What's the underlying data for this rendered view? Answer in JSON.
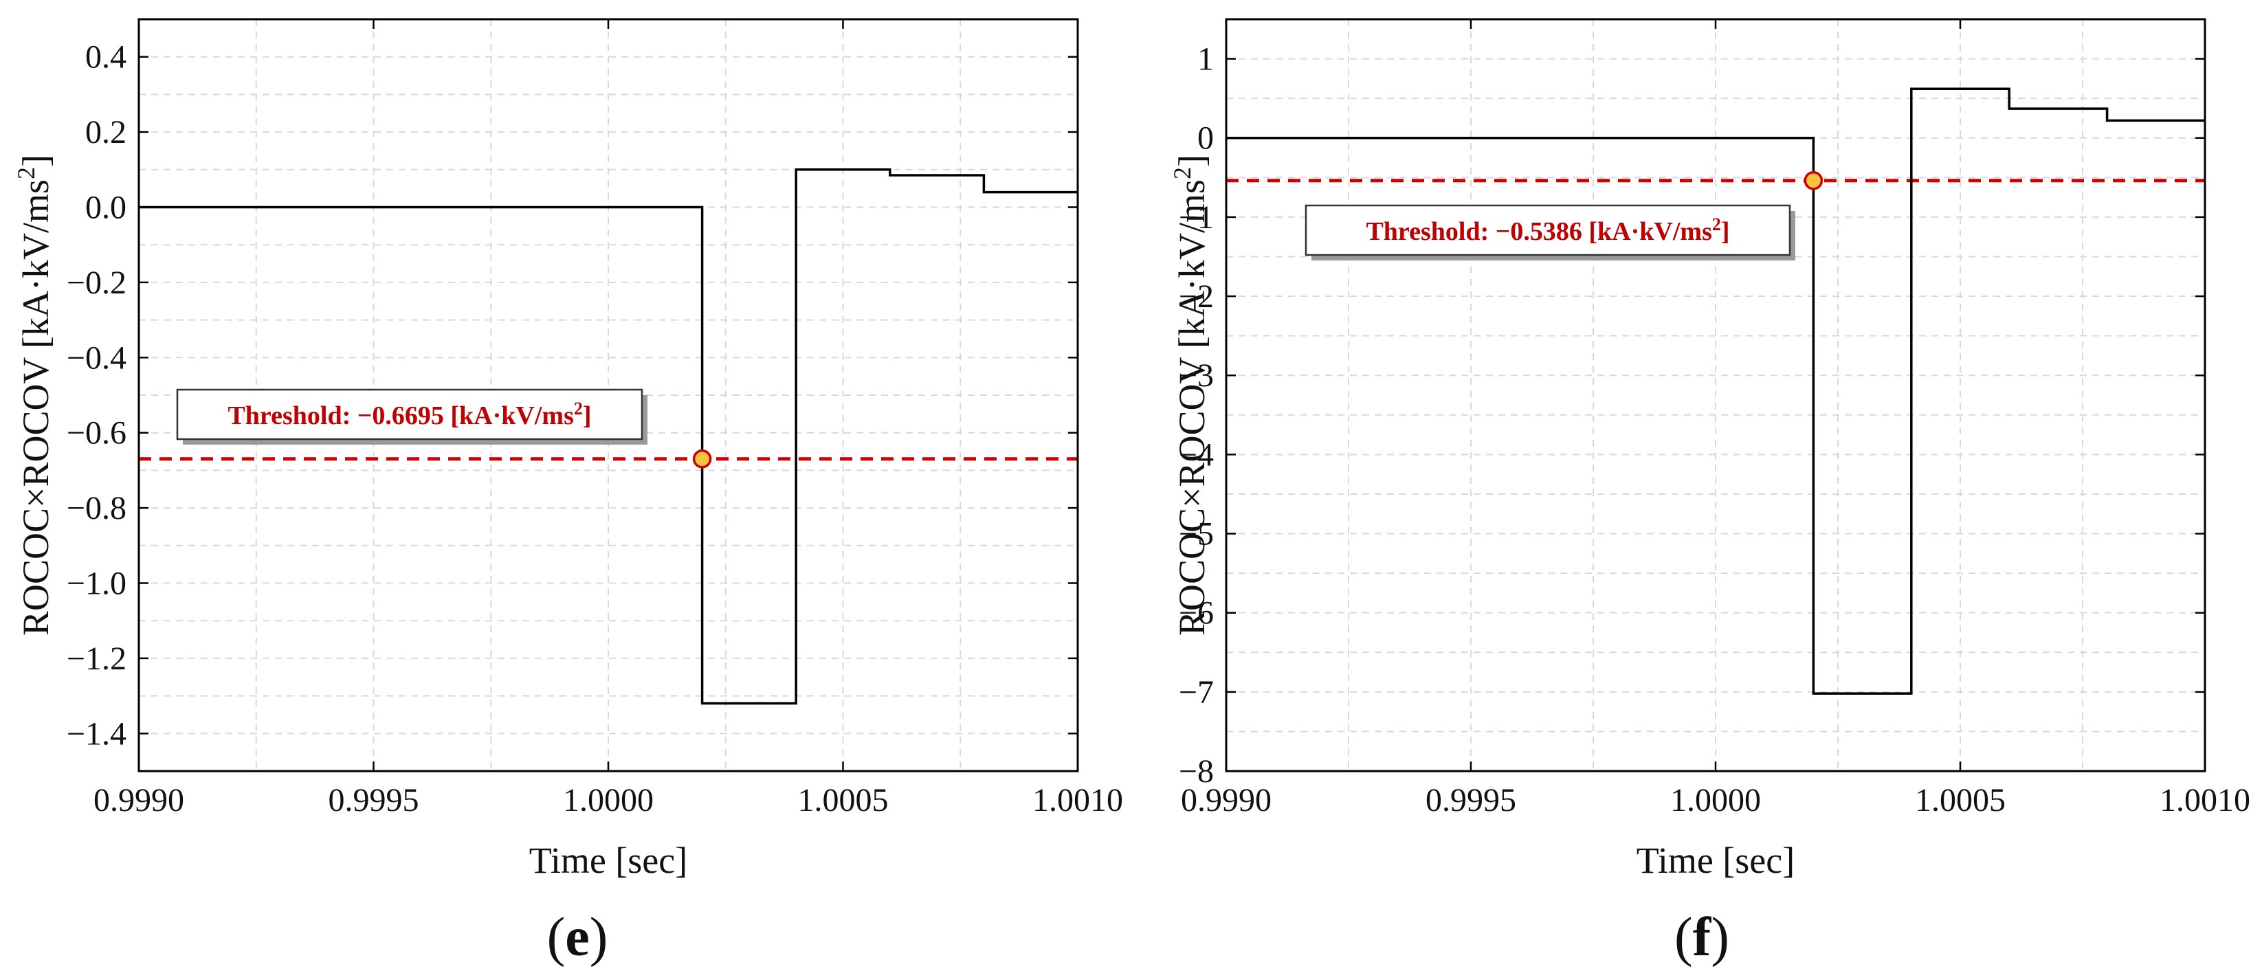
{
  "chart_data": [
    {
      "type": "line",
      "panel_label": "e",
      "xlabel": "Time [sec]",
      "ylabel": "ROCOC×ROCOV [kA·kV/ms",
      "ylabel_sup": "2",
      "ylabel_end": "]",
      "xlim": [
        0.999,
        1.001
      ],
      "ylim": [
        -1.5,
        0.5
      ],
      "xticks": [
        0.999,
        0.9995,
        1.0,
        1.0005,
        1.001
      ],
      "xtick_labels": [
        "0.9990",
        "0.9995",
        "1.0000",
        "1.0005",
        "1.0010"
      ],
      "yticks": [
        -1.4,
        -1.2,
        -1.0,
        -0.8,
        -0.6,
        -0.4,
        -0.2,
        0.0,
        0.2,
        0.4
      ],
      "ytick_labels": [
        "−1.4",
        "−1.2",
        "−1.0",
        "−0.8",
        "−0.6",
        "−0.4",
        "−0.2",
        "0.0",
        "0.2",
        "0.4"
      ],
      "grid": true,
      "series": [
        {
          "color": "#000000",
          "x": [
            0.999,
            1.0002,
            1.0002,
            1.0002,
            1.0004,
            1.0004,
            1.0004,
            1.0006,
            1.0006,
            1.0008,
            1.0008,
            1.001
          ],
          "y": [
            0.0,
            0.0,
            -0.28,
            -1.32,
            -1.32,
            -0.73,
            0.1,
            0.1,
            0.085,
            0.085,
            0.04,
            0.04
          ]
        }
      ],
      "threshold": {
        "value": -0.6695,
        "color": "#d00000",
        "label": "Threshold: −0.6695 [kA·kV/ms",
        "label_sup": "2",
        "label_end": "]",
        "marker_x": 1.0002,
        "marker_color": "#f5c542"
      }
    },
    {
      "type": "line",
      "panel_label": "f",
      "xlabel": "Time [sec]",
      "ylabel": "ROCOC×ROCOV [kA·kV/ms",
      "ylabel_sup": "2",
      "ylabel_end": "]",
      "xlim": [
        0.999,
        1.001
      ],
      "ylim": [
        -8,
        1.5
      ],
      "xticks": [
        0.999,
        0.9995,
        1.0,
        1.0005,
        1.001
      ],
      "xtick_labels": [
        "0.9990",
        "0.9995",
        "1.0000",
        "1.0005",
        "1.0010"
      ],
      "yticks": [
        -8,
        -7,
        -6,
        -5,
        -4,
        -3,
        -2,
        -1,
        0,
        1
      ],
      "ytick_labels": [
        "−8",
        "−7",
        "−6",
        "−5",
        "−4",
        "−3",
        "−2",
        "−1",
        "0",
        "1"
      ],
      "grid": true,
      "series": [
        {
          "color": "#000000",
          "x": [
            0.999,
            1.0002,
            1.0002,
            1.0002,
            1.0004,
            1.0004,
            1.0004,
            1.0006,
            1.0006,
            1.0008,
            1.0008,
            1.001
          ],
          "y": [
            0.0,
            0.0,
            -1.5,
            -7.02,
            -7.02,
            -3.8,
            0.62,
            0.62,
            0.37,
            0.37,
            0.22,
            0.22
          ]
        }
      ],
      "threshold": {
        "value": -0.5386,
        "color": "#d00000",
        "label": "Threshold: −0.5386 [kA·kV/ms",
        "label_sup": "2",
        "label_end": "]",
        "marker_x": 1.0002,
        "marker_color": "#f5c542"
      }
    }
  ]
}
